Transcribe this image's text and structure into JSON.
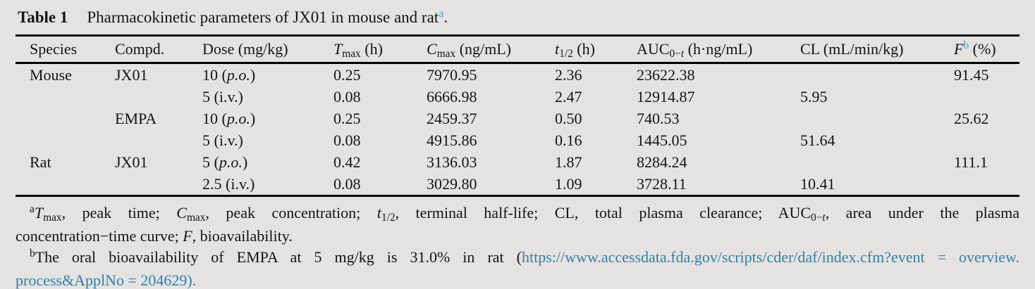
{
  "colors": {
    "bg": "#e4e3e1",
    "text": "#141414",
    "rule": "#000000",
    "link": "#2f81ac",
    "sup": "#4aa3d2"
  },
  "title": {
    "label": "Table 1",
    "parts": [
      {
        "t": "Pharmacokinetic parameters of JX01 in mouse and rat"
      },
      {
        "t": "a",
        "s": "supc"
      },
      {
        "t": "."
      }
    ]
  },
  "table": {
    "headers": [
      [
        {
          "t": "Species"
        }
      ],
      [
        {
          "t": "Compd."
        }
      ],
      [
        {
          "t": "Dose (mg/kg)"
        }
      ],
      [
        {
          "t": "T",
          "s": "i"
        },
        {
          "t": "max",
          "s": "sub"
        },
        {
          "t": " (h)"
        }
      ],
      [
        {
          "t": "C",
          "s": "i"
        },
        {
          "t": "max",
          "s": "sub"
        },
        {
          "t": " (ng/mL)"
        }
      ],
      [
        {
          "t": "t",
          "s": "i"
        },
        {
          "t": "1/2",
          "s": "sub"
        },
        {
          "t": " (h)"
        }
      ],
      [
        {
          "t": "AUC"
        },
        {
          "t": "0−",
          "s": "sub"
        },
        {
          "t": "t",
          "s": "subi"
        },
        {
          "t": " (h·ng/mL)"
        }
      ],
      [
        {
          "t": "CL (mL/min/kg)"
        }
      ],
      [
        {
          "t": "F",
          "s": "i"
        },
        {
          "t": "b",
          "s": "supc"
        },
        {
          "t": " (%)"
        }
      ]
    ],
    "rows": [
      {
        "species": "Mouse",
        "compound": "JX01",
        "dose": [
          {
            "t": "10 ("
          },
          {
            "t": "p.o.",
            "s": "i"
          },
          {
            "t": ")"
          }
        ],
        "tmax": "0.25",
        "cmax": "7970.95",
        "thalf": "2.36",
        "auc": "23622.38",
        "cl": "",
        "f": "91.45"
      },
      {
        "species": "",
        "compound": "",
        "dose": [
          {
            "t": "5 (i.v.)"
          }
        ],
        "tmax": "0.08",
        "cmax": "6666.98",
        "thalf": "2.47",
        "auc": "12914.87",
        "cl": "5.95",
        "f": ""
      },
      {
        "species": "",
        "compound": "EMPA",
        "dose": [
          {
            "t": "10 ("
          },
          {
            "t": "p.o.",
            "s": "i"
          },
          {
            "t": ")"
          }
        ],
        "tmax": "0.25",
        "cmax": "2459.37",
        "thalf": "0.50",
        "auc": "740.53",
        "cl": "",
        "f": "25.62"
      },
      {
        "species": "",
        "compound": "",
        "dose": [
          {
            "t": "5 (i.v.)"
          }
        ],
        "tmax": "0.08",
        "cmax": "4915.86",
        "thalf": "0.16",
        "auc": "1445.05",
        "cl": "51.64",
        "f": ""
      },
      {
        "species": "Rat",
        "compound": "JX01",
        "dose": [
          {
            "t": "5 ("
          },
          {
            "t": "p.o.",
            "s": "i"
          },
          {
            "t": ")"
          }
        ],
        "tmax": "0.42",
        "cmax": "3136.03",
        "thalf": "1.87",
        "auc": "8284.24",
        "cl": "",
        "f": "111.1"
      },
      {
        "species": "",
        "compound": "",
        "dose": [
          {
            "t": "2.5 (i.v.)"
          }
        ],
        "tmax": "0.08",
        "cmax": "3029.80",
        "thalf": "1.09",
        "auc": "3728.11",
        "cl": "10.41",
        "f": ""
      }
    ]
  },
  "footnotes": {
    "a": {
      "line1": [
        {
          "t": "a",
          "s": "sup"
        },
        {
          "t": "T",
          "s": "i"
        },
        {
          "t": "max",
          "s": "sub"
        },
        {
          "t": ", peak time; "
        },
        {
          "t": "C",
          "s": "i"
        },
        {
          "t": "max",
          "s": "sub"
        },
        {
          "t": ", peak concentration; "
        },
        {
          "t": "t",
          "s": "i"
        },
        {
          "t": "1/2",
          "s": "sub"
        },
        {
          "t": ", terminal half-life; CL, total plasma clearance; AUC"
        },
        {
          "t": "0−",
          "s": "sub"
        },
        {
          "t": "t",
          "s": "subi"
        },
        {
          "t": ", area under the plasma"
        }
      ],
      "line2": [
        {
          "t": "concentration−time curve; "
        },
        {
          "t": "F",
          "s": "i"
        },
        {
          "t": ", bioavailability."
        }
      ]
    },
    "b": {
      "line1": [
        {
          "t": "b",
          "s": "sup"
        },
        {
          "t": "The oral bioavailability of EMPA at 5 mg/kg is 31.0% in rat ("
        },
        {
          "t": "https://www.accessdata.fda.gov/scripts/cder/daf/index.cfm?event = overview.",
          "s": "link"
        }
      ],
      "line2": [
        {
          "t": "process&ApplNo = 204629",
          "s": "link"
        },
        {
          "t": ").",
          "s": "linkc"
        }
      ]
    }
  }
}
